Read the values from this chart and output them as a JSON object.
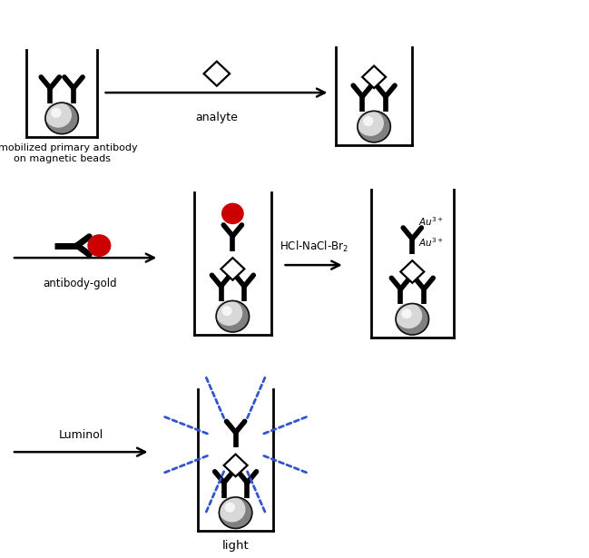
{
  "bg_color": "#ffffff",
  "line_color": "#000000",
  "red_color": "#cc0000",
  "blue_color": "#3355cc",
  "label_analyte": "analyte",
  "label_immobilized": "immobilized primary antibody\non magnetic beads",
  "label_antibody_gold": "antibody-gold",
  "label_hcl": "HCl-NaCl-Br$_2$",
  "label_luminol": "Luminol",
  "label_light": "light",
  "fig_width": 6.49,
  "fig_height": 6.15
}
